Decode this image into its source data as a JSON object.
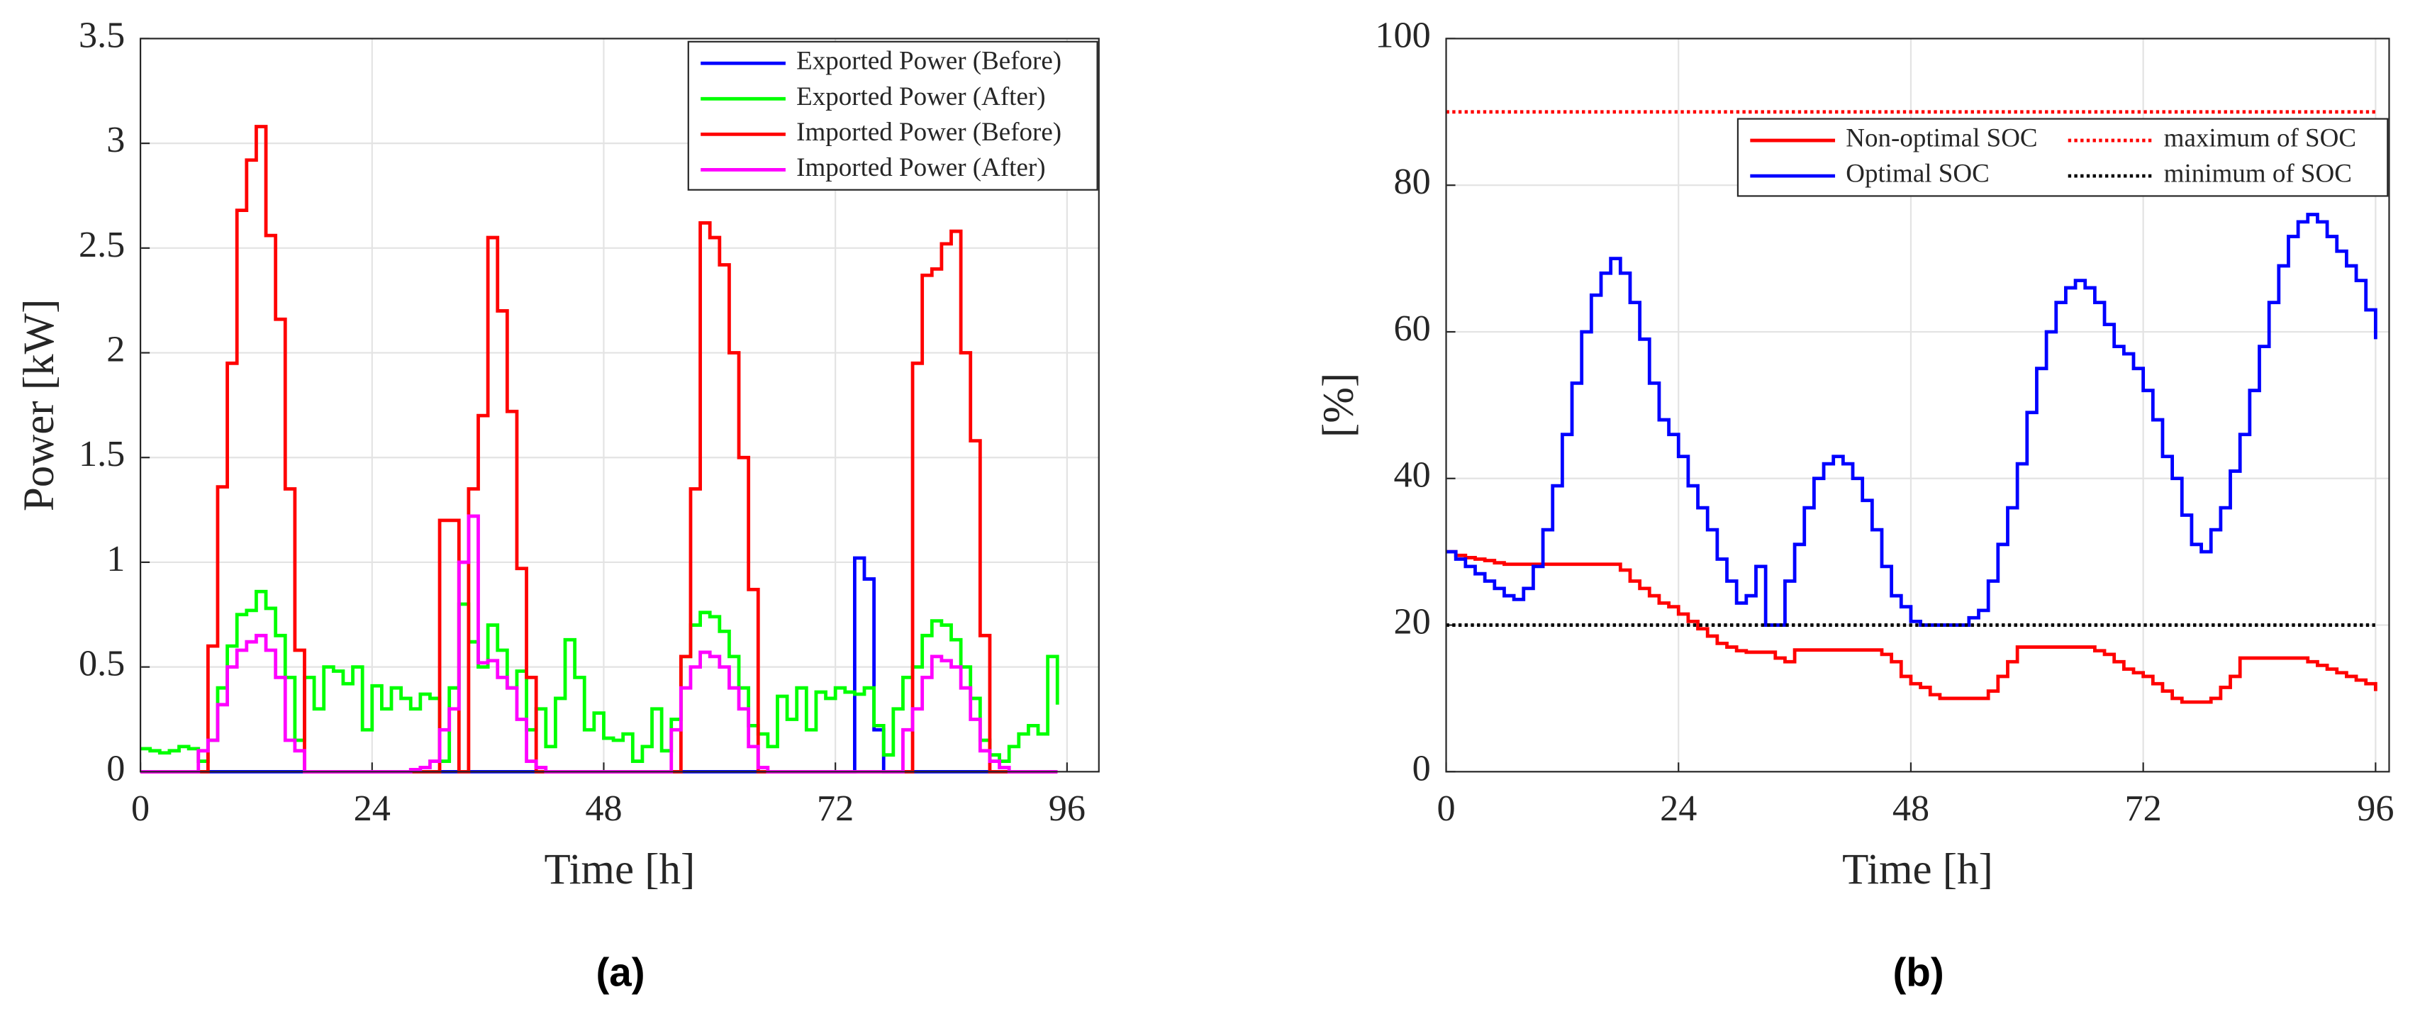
{
  "chart_data": [
    {
      "type": "line",
      "step": true,
      "caption": "(a)",
      "xlabel": "Time [h]",
      "ylabel": "Power [kW]",
      "x": [
        0,
        1,
        2,
        3,
        4,
        5,
        6,
        7,
        8,
        9,
        10,
        11,
        12,
        13,
        14,
        15,
        16,
        17,
        18,
        19,
        20,
        21,
        22,
        23,
        24,
        25,
        26,
        27,
        28,
        29,
        30,
        31,
        32,
        33,
        34,
        35,
        36,
        37,
        38,
        39,
        40,
        41,
        42,
        43,
        44,
        45,
        46,
        47,
        48,
        49,
        50,
        51,
        52,
        53,
        54,
        55,
        56,
        57,
        58,
        59,
        60,
        61,
        62,
        63,
        64,
        65,
        66,
        67,
        68,
        69,
        70,
        71,
        72,
        73,
        74,
        75,
        76,
        77,
        78,
        79,
        80,
        81,
        82,
        83,
        84,
        85,
        86,
        87,
        88,
        89,
        90,
        91,
        92,
        93,
        94,
        95
      ],
      "xlim": [
        0,
        99.3
      ],
      "xticks": [
        0,
        24,
        48,
        72,
        96
      ],
      "ylim": [
        0,
        3.5
      ],
      "yticks": [
        0,
        0.5,
        1,
        1.5,
        2,
        2.5,
        3,
        3.5
      ],
      "grid": true,
      "legend": "upper right",
      "legend_columns": 1,
      "series": [
        {
          "name": "Exported Power (Before)",
          "color": "#0000ff",
          "values": [
            0,
            0,
            0,
            0,
            0,
            0,
            0,
            0,
            0,
            0,
            0,
            0,
            0,
            0,
            0,
            0,
            0,
            0,
            0,
            0,
            0,
            0,
            0,
            0,
            0,
            0,
            0,
            0,
            0,
            0,
            0,
            0,
            0,
            0,
            0,
            0,
            0,
            0,
            0,
            0,
            0,
            0,
            0,
            0,
            0,
            0,
            0,
            0,
            0,
            0,
            0,
            0,
            0,
            0,
            0,
            0,
            0,
            0,
            0,
            0,
            0,
            0,
            0,
            0,
            0,
            0,
            0,
            0,
            0,
            0,
            0,
            0,
            0,
            0,
            1.02,
            0.92,
            0.2,
            0,
            0,
            0,
            0,
            0,
            0,
            0,
            0,
            0,
            0,
            0,
            0,
            0,
            0,
            0,
            0,
            0,
            0,
            0
          ]
        },
        {
          "name": "Exported Power (After)",
          "color": "#00ff00",
          "values": [
            0.11,
            0.1,
            0.09,
            0.1,
            0.12,
            0.11,
            0.05,
            0.15,
            0.4,
            0.6,
            0.75,
            0.77,
            0.86,
            0.78,
            0.65,
            0.45,
            0.15,
            0.45,
            0.3,
            0.5,
            0.48,
            0.42,
            0.5,
            0.2,
            0.41,
            0.3,
            0.4,
            0.35,
            0.3,
            0.37,
            0.35,
            0.05,
            0.4,
            0.8,
            0.62,
            0.5,
            0.7,
            0.58,
            0.4,
            0.48,
            0.2,
            0.3,
            0.12,
            0.35,
            0.63,
            0.45,
            0.2,
            0.28,
            0.16,
            0.15,
            0.18,
            0.05,
            0.12,
            0.3,
            0.1,
            0.25,
            0.55,
            0.7,
            0.76,
            0.74,
            0.67,
            0.55,
            0.4,
            0.22,
            0.18,
            0.12,
            0.36,
            0.25,
            0.4,
            0.2,
            0.38,
            0.35,
            0.4,
            0.38,
            0.37,
            0.4,
            0.22,
            0.08,
            0.3,
            0.45,
            0.5,
            0.65,
            0.72,
            0.7,
            0.63,
            0.5,
            0.35,
            0.15,
            0.08,
            0.05,
            0.12,
            0.18,
            0.22,
            0.18,
            0.55,
            0.32
          ]
        },
        {
          "name": "Imported Power (Before)",
          "color": "#ff0000",
          "values": [
            0,
            0,
            0,
            0,
            0,
            0,
            0,
            0.6,
            1.36,
            1.95,
            2.68,
            2.92,
            3.08,
            2.56,
            2.16,
            1.35,
            0.58,
            0,
            0,
            0,
            0,
            0,
            0,
            0,
            0,
            0,
            0,
            0,
            0,
            0,
            0,
            1.2,
            1.2,
            0,
            1.35,
            1.7,
            2.55,
            2.2,
            1.72,
            0.97,
            0.45,
            0,
            0,
            0,
            0,
            0,
            0,
            0,
            0,
            0,
            0,
            0,
            0,
            0,
            0,
            0,
            0.55,
            1.35,
            2.62,
            2.55,
            2.42,
            2.0,
            1.5,
            0.87,
            0,
            0,
            0,
            0,
            0,
            0,
            0,
            0,
            0,
            0,
            0,
            0,
            0,
            0,
            0,
            0,
            1.95,
            2.37,
            2.4,
            2.52,
            2.58,
            2.0,
            1.58,
            0.65,
            0,
            0,
            0,
            0,
            0,
            0,
            0,
            0
          ]
        },
        {
          "name": "Imported Power (After)",
          "color": "#ff00ff",
          "values": [
            0,
            0,
            0,
            0,
            0,
            0,
            0.1,
            0.15,
            0.32,
            0.5,
            0.58,
            0.62,
            0.65,
            0.58,
            0.45,
            0.15,
            0.1,
            0,
            0,
            0,
            0,
            0,
            0,
            0,
            0,
            0,
            0,
            0,
            0.01,
            0.02,
            0.05,
            0.2,
            0.3,
            1.0,
            1.22,
            0.52,
            0.53,
            0.45,
            0.4,
            0.25,
            0.05,
            0.02,
            0,
            0,
            0,
            0,
            0,
            0,
            0,
            0,
            0,
            0,
            0,
            0,
            0,
            0.2,
            0.4,
            0.5,
            0.57,
            0.55,
            0.5,
            0.4,
            0.3,
            0.12,
            0.02,
            0,
            0,
            0,
            0,
            0,
            0,
            0,
            0,
            0,
            0,
            0,
            0,
            0,
            0,
            0.2,
            0.3,
            0.45,
            0.55,
            0.53,
            0.5,
            0.4,
            0.25,
            0.1,
            0.05,
            0.02,
            0,
            0,
            0,
            0,
            0,
            0
          ]
        }
      ]
    },
    {
      "type": "line",
      "step": true,
      "caption": "(b)",
      "xlabel": "Time [h]",
      "ylabel": "[%]",
      "x": [
        0,
        1,
        2,
        3,
        4,
        5,
        6,
        7,
        8,
        9,
        10,
        11,
        12,
        13,
        14,
        15,
        16,
        17,
        18,
        19,
        20,
        21,
        22,
        23,
        24,
        25,
        26,
        27,
        28,
        29,
        30,
        31,
        32,
        33,
        34,
        35,
        36,
        37,
        38,
        39,
        40,
        41,
        42,
        43,
        44,
        45,
        46,
        47,
        48,
        49,
        50,
        51,
        52,
        53,
        54,
        55,
        56,
        57,
        58,
        59,
        60,
        61,
        62,
        63,
        64,
        65,
        66,
        67,
        68,
        69,
        70,
        71,
        72,
        73,
        74,
        75,
        76,
        77,
        78,
        79,
        80,
        81,
        82,
        83,
        84,
        85,
        86,
        87,
        88,
        89,
        90,
        91,
        92,
        93,
        94,
        95,
        96
      ],
      "xlim": [
        0,
        97.4
      ],
      "xticks": [
        0,
        24,
        48,
        72,
        96
      ],
      "ylim": [
        0,
        100
      ],
      "yticks": [
        0,
        20,
        40,
        60,
        80,
        100
      ],
      "grid": true,
      "legend": "upper right",
      "legend_columns": 2,
      "series": [
        {
          "name": "Non-optimal SOC",
          "color": "#ff0000",
          "values": [
            30,
            29.5,
            29.2,
            29,
            28.8,
            28.5,
            28.3,
            28.3,
            28.3,
            28.3,
            28.3,
            28.3,
            28.3,
            28.3,
            28.3,
            28.3,
            28.3,
            28.3,
            27.5,
            26,
            25,
            24,
            23,
            22.5,
            21.5,
            20.5,
            19.5,
            18.5,
            17.5,
            17,
            16.5,
            16.3,
            16.3,
            16.3,
            15.5,
            15,
            16.6,
            16.6,
            16.6,
            16.6,
            16.6,
            16.6,
            16.6,
            16.6,
            16.6,
            16,
            15,
            13,
            12,
            11.5,
            10.5,
            10,
            10,
            10,
            10,
            10,
            11,
            13,
            15,
            17,
            17,
            17,
            17,
            17,
            17,
            17,
            17,
            16.5,
            16,
            15,
            14,
            13.5,
            13,
            12,
            11,
            10,
            9.5,
            9.5,
            9.5,
            10,
            11.5,
            13,
            15.5,
            15.5,
            15.5,
            15.5,
            15.5,
            15.5,
            15.5,
            15,
            14.5,
            14,
            13.5,
            13,
            12.5,
            12,
            11
          ]
        },
        {
          "name": "maximum of SOC",
          "color": "#ff0000",
          "dash": "dotted",
          "x": [
            0,
            96
          ],
          "values": [
            90,
            90
          ]
        },
        {
          "name": "Optimal SOC",
          "color": "#0000ff",
          "values": [
            30,
            29,
            28,
            27,
            26,
            25,
            24,
            23.5,
            25,
            28,
            33,
            39,
            46,
            53,
            60,
            65,
            68,
            70,
            68,
            64,
            59,
            53,
            48,
            46,
            43,
            39,
            36,
            33,
            29,
            26,
            23,
            24,
            28,
            20,
            20,
            26,
            31,
            36,
            40,
            42,
            43,
            42,
            40,
            37,
            33,
            28,
            24,
            22.5,
            20.5,
            20,
            20,
            20,
            20,
            20,
            21,
            22,
            26,
            31,
            36,
            42,
            49,
            55,
            60,
            64,
            66,
            67,
            66,
            64,
            61,
            58,
            57,
            55,
            52,
            48,
            43,
            40,
            35,
            31,
            30,
            33,
            36,
            41,
            46,
            52,
            58,
            64,
            69,
            73,
            75,
            76,
            75,
            73,
            71,
            69,
            67,
            63,
            59
          ]
        },
        {
          "name": "minimum of SOC",
          "color": "#000000",
          "dash": "dotted",
          "x": [
            0,
            96
          ],
          "values": [
            20,
            20
          ]
        }
      ]
    }
  ]
}
